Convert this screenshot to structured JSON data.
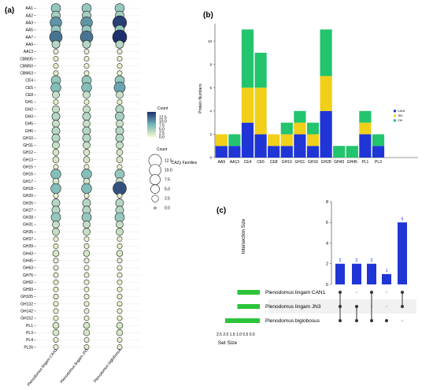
{
  "panel_labels": {
    "a": "(a)",
    "b": "(b)",
    "c": "(c)"
  },
  "colors": {
    "low": "#f7f8cf",
    "mid": "#74b6b8",
    "high": "#1d2f6d",
    "can1": "#1f35d6",
    "jn3": "#f2cf19",
    "chl": "#22c46d",
    "set_bar": "#2bc43a",
    "dot_on": "#333333",
    "dot_off": "#d9d9d9",
    "inter_bar": "#1f35d6",
    "inter_label": "#1f35d6"
  },
  "chart_data": [
    {
      "type": "scatter",
      "subtype": "bubble-matrix",
      "title": "",
      "columns": [
        "Plenodomus lingam CAN1",
        "Plenodomus lingam JN3",
        "Plenodomus biglobosus"
      ],
      "rows": [
        "AA1",
        "AA2",
        "AA3",
        "AA5",
        "AA7",
        "AA9",
        "AA13",
        "CBM35",
        "CBM50",
        "CBM63",
        "CE4",
        "CE5",
        "CE8",
        "GH1",
        "GH2",
        "GH3",
        "GH5",
        "GH6",
        "GH10",
        "GH11",
        "GH12",
        "GH13",
        "GH15",
        "GH16",
        "GH17",
        "GH18",
        "GH20",
        "GH26",
        "GH27",
        "GH28",
        "GH31",
        "GH35",
        "GH37",
        "GH39",
        "GH43",
        "GH45",
        "GH63",
        "GH76",
        "GH92",
        "GH93",
        "GH105",
        "GH132",
        "GH142",
        "GH152",
        "PL1",
        "PL3",
        "PL4",
        "PL26"
      ],
      "values": [
        [
          6,
          6,
          6
        ],
        [
          5,
          5,
          5
        ],
        [
          10,
          10,
          15
        ],
        [
          6,
          6,
          6
        ],
        [
          12,
          12,
          16
        ],
        [
          4,
          4,
          4
        ],
        [
          1,
          1,
          1
        ],
        [
          1,
          1,
          1
        ],
        [
          1,
          1,
          1
        ],
        [
          1,
          1,
          1
        ],
        [
          6,
          6,
          6
        ],
        [
          7,
          7,
          9
        ],
        [
          3,
          3,
          3
        ],
        [
          1,
          1,
          1
        ],
        [
          3,
          3,
          4
        ],
        [
          4,
          4,
          5
        ],
        [
          3,
          3,
          3
        ],
        [
          4,
          4,
          4
        ],
        [
          4,
          4,
          4
        ],
        [
          3,
          3,
          3
        ],
        [
          2,
          2,
          2
        ],
        [
          2,
          2,
          2
        ],
        [
          1,
          1,
          1
        ],
        [
          7,
          7,
          6
        ],
        [
          2,
          2,
          3
        ],
        [
          7,
          7,
          14
        ],
        [
          1,
          1,
          1
        ],
        [
          4,
          4,
          4
        ],
        [
          4,
          4,
          4
        ],
        [
          6,
          6,
          6
        ],
        [
          3,
          3,
          3
        ],
        [
          3,
          3,
          3
        ],
        [
          1,
          1,
          1
        ],
        [
          1,
          1,
          1
        ],
        [
          2,
          2,
          2
        ],
        [
          1,
          1,
          1
        ],
        [
          1,
          1,
          1
        ],
        [
          1,
          1,
          1
        ],
        [
          1,
          1,
          1
        ],
        [
          1,
          1,
          1
        ],
        [
          1,
          1,
          1
        ],
        [
          1,
          1,
          1
        ],
        [
          1,
          1,
          1
        ],
        [
          1,
          1,
          1
        ],
        [
          2,
          2,
          2
        ],
        [
          2,
          2,
          2
        ],
        [
          1,
          1,
          1
        ],
        [
          1,
          1,
          1
        ]
      ],
      "color_legend": {
        "title": "Count",
        "ticks": [
          "12.5",
          "10.0",
          "7.5",
          "5.0",
          "2.5",
          "0.0"
        ],
        "min": 0,
        "max": 16
      },
      "size_legend": {
        "title": "Count",
        "entries": [
          {
            "label": "12.5",
            "value": 12.5
          },
          {
            "label": "10.0",
            "value": 10
          },
          {
            "label": "7.5",
            "value": 7.5
          },
          {
            "label": "5.0",
            "value": 5
          },
          {
            "label": "2.5",
            "value": 2.5
          },
          {
            "label": "0.0",
            "value": 0
          }
        ]
      }
    },
    {
      "type": "bar",
      "subtype": "stacked",
      "title": "",
      "xlabel": "CAZy Families",
      "ylabel": "Protein Numbers",
      "ylim": [
        0,
        11.5
      ],
      "yticks": [
        "0",
        "2",
        "4",
        "6",
        "8",
        "10"
      ],
      "categories": [
        "AA9",
        "AA13",
        "CE4",
        "CE5",
        "CE8",
        "GH10",
        "GH11",
        "GH16",
        "GH28",
        "GH43",
        "GH45",
        "PL1",
        "PL3"
      ],
      "series": [
        {
          "name": "CAN1",
          "values": [
            1,
            1,
            3,
            2,
            1,
            1,
            2,
            1,
            4,
            0,
            0,
            2,
            1
          ]
        },
        {
          "name": "JN3",
          "values": [
            1,
            0,
            3,
            4,
            1,
            1,
            1,
            1,
            3,
            0,
            0,
            1,
            0
          ]
        },
        {
          "name": "CHI",
          "values": [
            0,
            1,
            5,
            3,
            0,
            1,
            1,
            1,
            4,
            1,
            1,
            1,
            1
          ]
        }
      ],
      "legend_placement": "right",
      "grid": false
    },
    {
      "type": "bar",
      "subtype": "upset",
      "title": "",
      "ylabel": "Intersection Size",
      "ylim": [
        0,
        8
      ],
      "yticks": [
        "0",
        "2",
        "4",
        "6",
        "8"
      ],
      "intersections": [
        {
          "value": 2,
          "label": "2",
          "members": [
            0,
            1,
            2
          ]
        },
        {
          "value": 2,
          "label": "2",
          "members": [
            1,
            2
          ]
        },
        {
          "value": 2,
          "label": "2",
          "members": [
            0,
            2
          ]
        },
        {
          "value": 1,
          "label": "1",
          "members": [
            2
          ]
        },
        {
          "value": 6,
          "label": "6",
          "members": [
            0,
            1
          ]
        }
      ],
      "sets": [
        {
          "name": "Plenodomus lingam CAN1",
          "size": 1.3
        },
        {
          "name": "Plenodomus lingam JN3",
          "size": 1.3
        },
        {
          "name": "Plenodomus biglobosus",
          "size": 2.0
        }
      ],
      "set_size_label": "Set Size",
      "set_size_ticks": [
        "2.5",
        "2.0",
        "1.5",
        "1.0",
        "0.5",
        "0.0"
      ],
      "set_size_ticks_text": "2.5 2.0 1.5 1.0 0.5 0.0"
    }
  ]
}
